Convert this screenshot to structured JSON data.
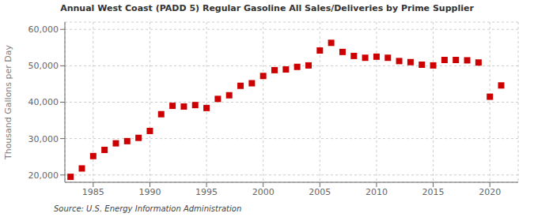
{
  "chart_data": {
    "type": "scatter",
    "title": "Annual West Coast (PADD 5) Regular Gasoline All Sales/Deliveries by Prime Supplier",
    "y_label": "Thousand Gallons per Day",
    "annotations": [
      "Source: U.S. Energy Information Administration"
    ],
    "x": [
      1983,
      1984,
      1985,
      1986,
      1987,
      1988,
      1989,
      1990,
      1991,
      1992,
      1993,
      1994,
      1995,
      1996,
      1997,
      1998,
      1999,
      2000,
      2001,
      2002,
      2003,
      2004,
      2005,
      2006,
      2007,
      2008,
      2009,
      2010,
      2011,
      2012,
      2013,
      2014,
      2015,
      2016,
      2017,
      2018,
      2019,
      2020,
      2021
    ],
    "values": [
      19500,
      21800,
      25200,
      26900,
      28700,
      29300,
      30200,
      32100,
      36700,
      39000,
      38800,
      39200,
      38400,
      40900,
      41900,
      44500,
      45200,
      47200,
      48800,
      49000,
      49700,
      50100,
      54200,
      56300,
      53800,
      52700,
      52200,
      52500,
      52200,
      51300,
      51000,
      50300,
      50100,
      51600,
      51600,
      51500,
      50900,
      41500,
      44600
    ],
    "color": "#cc0000",
    "marker": "square",
    "xlim": [
      1982.5,
      2022.5
    ],
    "xticks": [
      1985,
      1990,
      1995,
      2000,
      2005,
      2010,
      2015,
      2020
    ],
    "ylim": [
      18000,
      62000
    ],
    "yticks": [
      {
        "value": 20000,
        "label": "20,000"
      },
      {
        "value": 30000,
        "label": "30,000"
      },
      {
        "value": 40000,
        "label": "40,000"
      },
      {
        "value": 50000,
        "label": "50,000"
      },
      {
        "value": 60000,
        "label": "60,000"
      }
    ],
    "grid": true
  }
}
